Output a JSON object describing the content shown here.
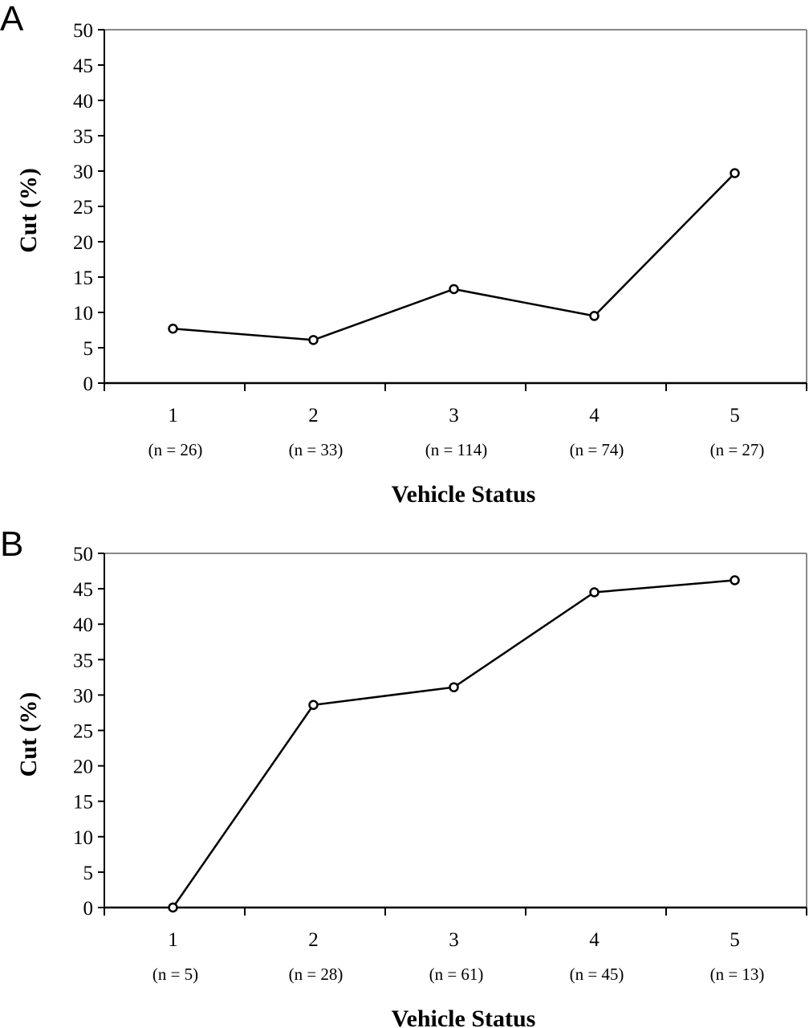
{
  "chart_data": [
    {
      "type": "line",
      "panel_label": "A",
      "xlabel": "Vehicle Status",
      "ylabel": "Cut (%)",
      "categories": [
        "1",
        "2",
        "3",
        "4",
        "5"
      ],
      "category_sublabels": [
        "(n = 26)",
        "(n = 33)",
        "(n = 114)",
        "(n = 74)",
        "(n = 27)"
      ],
      "values": [
        7.7,
        6.1,
        13.3,
        9.5,
        29.7
      ],
      "ylim": [
        0,
        50
      ],
      "yticks": [
        "0",
        "5",
        "10",
        "15",
        "20",
        "25",
        "30",
        "35",
        "40",
        "45",
        "50"
      ],
      "grid": false,
      "marker": "open-circle",
      "line_color": "#000000"
    },
    {
      "type": "line",
      "panel_label": "B",
      "xlabel": "Vehicle Status",
      "ylabel": "Cut (%)",
      "categories": [
        "1",
        "2",
        "3",
        "4",
        "5"
      ],
      "category_sublabels": [
        "(n = 5)",
        "(n = 28)",
        "(n = 61)",
        "(n = 45)",
        "(n = 13)"
      ],
      "values": [
        0,
        28.6,
        31.1,
        44.5,
        46.2
      ],
      "ylim": [
        0,
        50
      ],
      "yticks": [
        "0",
        "5",
        "10",
        "15",
        "20",
        "25",
        "30",
        "35",
        "40",
        "45",
        "50"
      ],
      "grid": false,
      "marker": "open-circle",
      "line_color": "#000000"
    }
  ]
}
